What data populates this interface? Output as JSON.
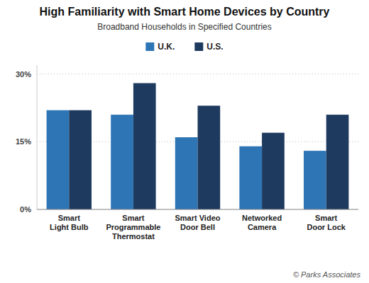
{
  "chart_data": {
    "type": "bar",
    "title": "High Familiarity with Smart Home Devices by Country",
    "subtitle": "Broadband Households in Specified Countries",
    "categories": [
      "Smart\nLight Bulb",
      "Smart\nProgrammable\nThermostat",
      "Smart Video\nDoor Bell",
      "Networked\nCamera",
      "Smart\nDoor Lock"
    ],
    "series": [
      {
        "name": "U.K.",
        "color": "#2e75b6",
        "values": [
          22,
          21,
          16,
          14,
          13
        ]
      },
      {
        "name": "U.S.",
        "color": "#1e3a5f",
        "values": [
          22,
          28,
          23,
          17,
          21
        ]
      }
    ],
    "ylim": [
      0,
      32
    ],
    "yticks": [
      {
        "value": 0,
        "label": "0%"
      },
      {
        "value": 15,
        "label": "15%"
      },
      {
        "value": 30,
        "label": "30%"
      }
    ],
    "grid": true,
    "legend": "top",
    "annotations": [
      "© Parks Associates"
    ]
  }
}
